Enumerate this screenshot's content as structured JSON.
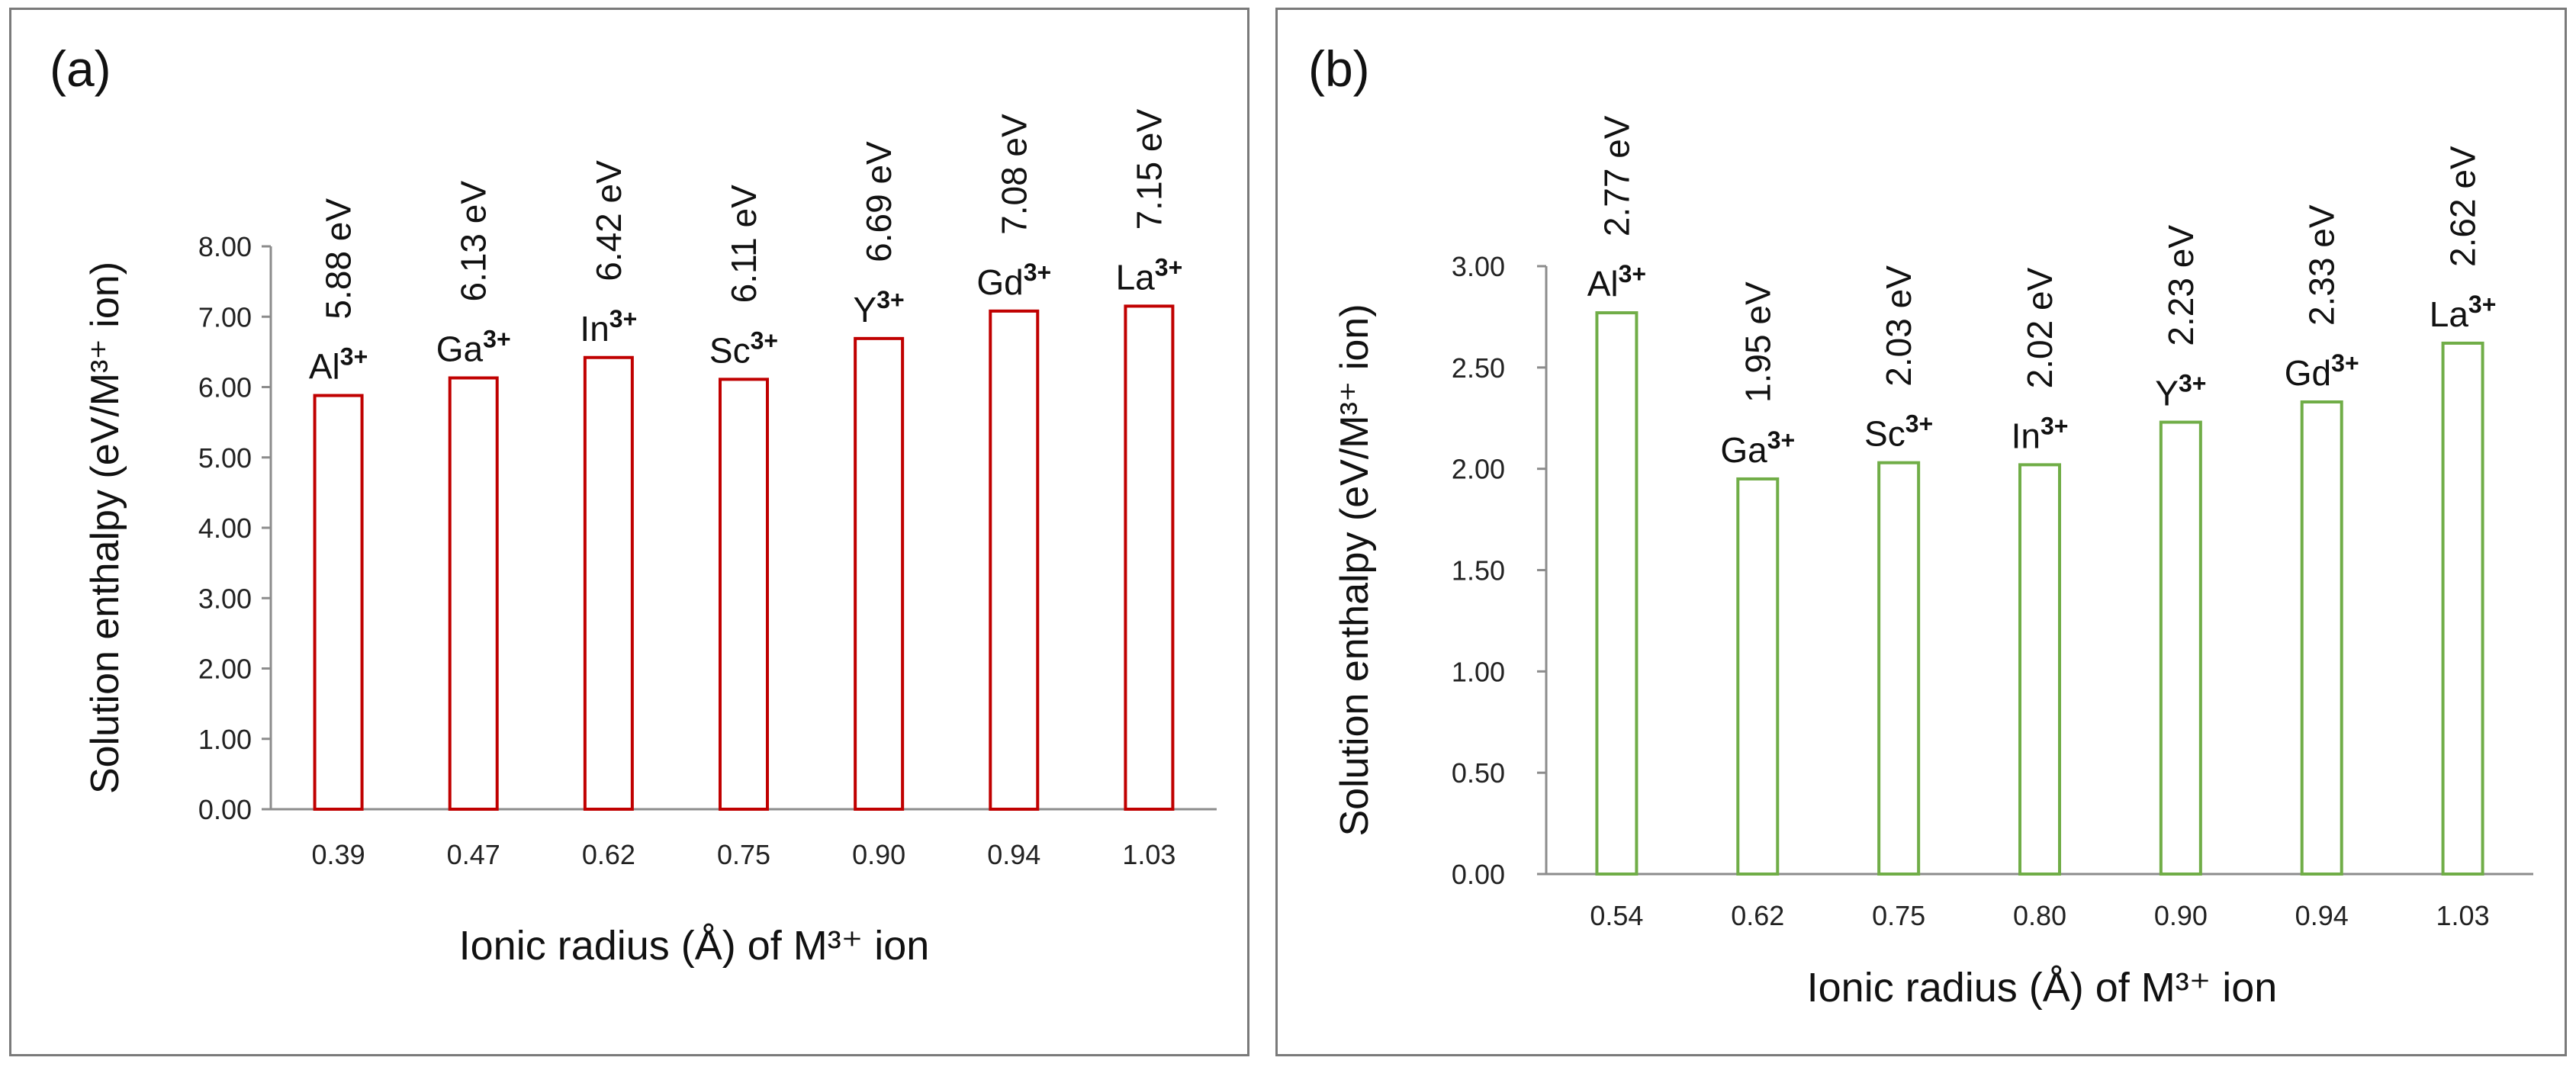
{
  "chart_data": [
    {
      "type": "bar",
      "panel_label": "(a)",
      "title": "",
      "xlabel": "Ionic radius (Å) of M³⁺ ion",
      "ylabel": "Solution enthalpy (eV/M³⁺ ion)",
      "ylim": [
        0,
        8
      ],
      "ytick_step": 1,
      "ytick_labels": [
        "0.00",
        "1.00",
        "2.00",
        "3.00",
        "4.00",
        "5.00",
        "6.00",
        "7.00",
        "8.00"
      ],
      "categories": [
        "0.39",
        "0.47",
        "0.62",
        "0.75",
        "0.90",
        "0.94",
        "1.03"
      ],
      "values": [
        5.88,
        6.13,
        6.42,
        6.11,
        6.69,
        7.08,
        7.15
      ],
      "ion_labels": [
        {
          "base": "Al",
          "sup": "3+"
        },
        {
          "base": "Ga",
          "sup": "3+"
        },
        {
          "base": "In",
          "sup": "3+"
        },
        {
          "base": "Sc",
          "sup": "3+"
        },
        {
          "base": "Y",
          "sup": "3+"
        },
        {
          "base": "Gd",
          "sup": "3+"
        },
        {
          "base": "La",
          "sup": "3+"
        }
      ],
      "value_labels": [
        "5.88 eV",
        "6.13 eV",
        "6.42 eV",
        "6.11 eV",
        "6.69 eV",
        "7.08 eV",
        "7.15 eV"
      ],
      "bar_color": "#c00000",
      "grid": false,
      "legend": "none"
    },
    {
      "type": "bar",
      "panel_label": "(b)",
      "title": "",
      "xlabel": "Ionic radius (Å) of M³⁺ ion",
      "ylabel": "Solution enthalpy (eV/M³⁺ ion)",
      "ylim": [
        0,
        3
      ],
      "ytick_step": 0.5,
      "ytick_labels": [
        "0.00",
        "0.50",
        "1.00",
        "1.50",
        "2.00",
        "2.50",
        "3.00"
      ],
      "categories": [
        "0.54",
        "0.62",
        "0.75",
        "0.80",
        "0.90",
        "0.94",
        "1.03"
      ],
      "values": [
        2.77,
        1.95,
        2.03,
        2.02,
        2.23,
        2.33,
        2.62
      ],
      "ion_labels": [
        {
          "base": "Al",
          "sup": "3+"
        },
        {
          "base": "Ga",
          "sup": "3+"
        },
        {
          "base": "Sc",
          "sup": "3+"
        },
        {
          "base": "In",
          "sup": "3+"
        },
        {
          "base": "Y",
          "sup": "3+"
        },
        {
          "base": "Gd",
          "sup": "3+"
        },
        {
          "base": "La",
          "sup": "3+"
        }
      ],
      "value_labels": [
        "2.77 eV",
        "1.95 eV",
        "2.03 eV",
        "2.02 eV",
        "2.23 eV",
        "2.33 eV",
        "2.62 eV"
      ],
      "bar_color": "#70ad47",
      "grid": false,
      "legend": "none"
    }
  ]
}
